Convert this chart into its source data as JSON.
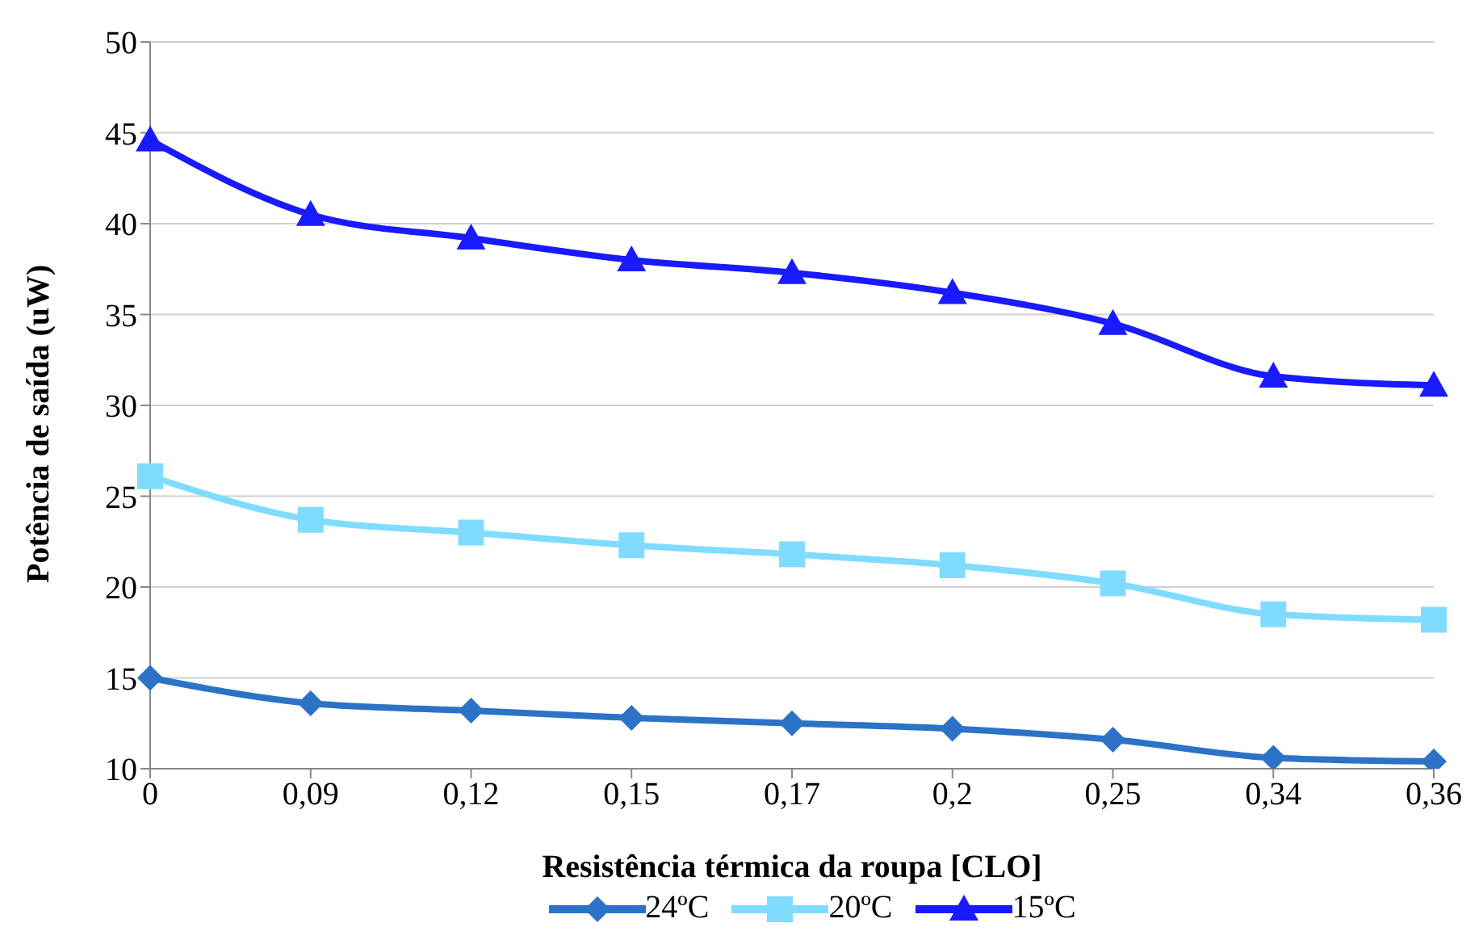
{
  "chart_data": {
    "type": "line",
    "xlabel": "Resistência térmica da roupa [CLO]",
    "ylabel": "Potência de saída (uW)",
    "categories": [
      "0",
      "0,09",
      "0,12",
      "0,15",
      "0,17",
      "0,2",
      "0,25",
      "0,34",
      "0,36"
    ],
    "series": [
      {
        "name": "24ºC",
        "color": "#2c72c7",
        "marker": "diamond",
        "values": [
          15.0,
          13.6,
          13.2,
          12.8,
          12.5,
          12.2,
          11.6,
          10.6,
          10.4
        ]
      },
      {
        "name": "20ºC",
        "color": "#80dcff",
        "marker": "square",
        "values": [
          26.1,
          23.7,
          23.0,
          22.3,
          21.8,
          21.2,
          20.2,
          18.5,
          18.2
        ]
      },
      {
        "name": "15ºC",
        "color": "#1a1aff",
        "marker": "triangle",
        "values": [
          44.6,
          40.5,
          39.2,
          38.0,
          37.3,
          36.2,
          34.5,
          31.6,
          31.1
        ]
      }
    ],
    "ylim": [
      10,
      50
    ],
    "yticks": [
      10,
      15,
      20,
      25,
      30,
      35,
      40,
      45,
      50
    ],
    "grid": "y",
    "legend": "bottom",
    "line_style": "solid"
  }
}
